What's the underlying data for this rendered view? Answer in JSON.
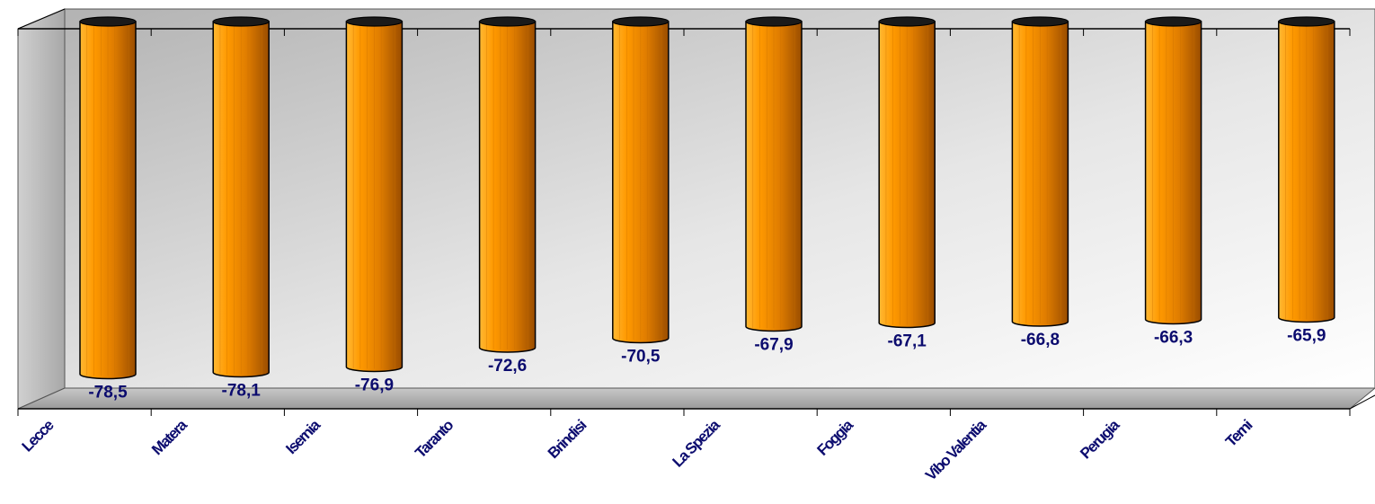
{
  "chart_data": {
    "type": "bar",
    "style": "3d-cylinder",
    "categories": [
      "Lecce",
      "Matera",
      "Isernia",
      "Taranto",
      "Brindisi",
      "La Spezia",
      "Foggia",
      "Vibo Valentia",
      "Perugia",
      "Terni"
    ],
    "values": [
      -78.5,
      -78.1,
      -76.9,
      -72.6,
      -70.5,
      -67.9,
      -67.1,
      -66.8,
      -66.3,
      -65.9
    ],
    "value_labels": [
      "-78,5",
      "-78,1",
      "-76,9",
      "-72,6",
      "-70,5",
      "-67,9",
      "-67,1",
      "-66,8",
      "-66,3",
      "-65,9"
    ],
    "title": "",
    "xlabel": "",
    "ylabel": "",
    "ylim": [
      -82,
      0
    ],
    "grid": false,
    "legend": "none",
    "colors": {
      "bar": "#ff9900",
      "bar_dark": "#b85c00",
      "bar_top": "#1a1a1a",
      "label": "#0b0b6e",
      "wall": "#bfbfbf",
      "floor": "#d9d9d9"
    }
  }
}
